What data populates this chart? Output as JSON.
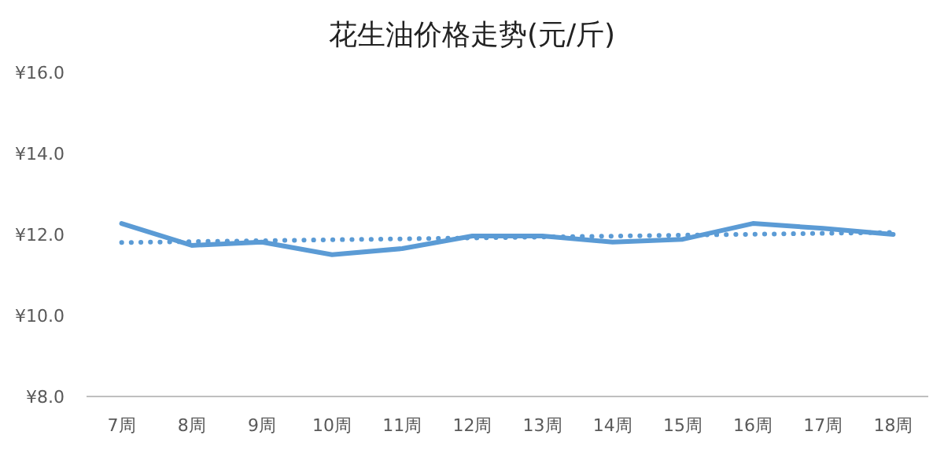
{
  "chart_data": {
    "type": "line",
    "title": "花生油价格走势(元/斤)",
    "categories": [
      "7周",
      "8周",
      "9周",
      "10周",
      "11周",
      "12周",
      "13周",
      "14周",
      "15周",
      "16周",
      "17周",
      "18周"
    ],
    "series": [
      {
        "color": "#5b9bd5",
        "line_style": "solid",
        "values": [
          12.27,
          11.73,
          11.81,
          11.5,
          11.65,
          11.96,
          11.96,
          11.81,
          11.88,
          12.27,
          12.15,
          12.0
        ]
      },
      {
        "color": "#5b9bd5",
        "line_style": "dotted",
        "x": [
          "7周",
          "18周"
        ],
        "values": [
          11.8,
          12.05
        ]
      }
    ],
    "ylim": [
      8,
      16
    ],
    "yticks": [
      {
        "value": 8,
        "label": "¥8.0"
      },
      {
        "value": 10,
        "label": "¥10.0"
      },
      {
        "value": 12,
        "label": "¥12.0"
      },
      {
        "value": 14,
        "label": "¥14.0"
      },
      {
        "value": 16,
        "label": "¥16.0"
      }
    ],
    "grid": false,
    "marker": "none"
  }
}
